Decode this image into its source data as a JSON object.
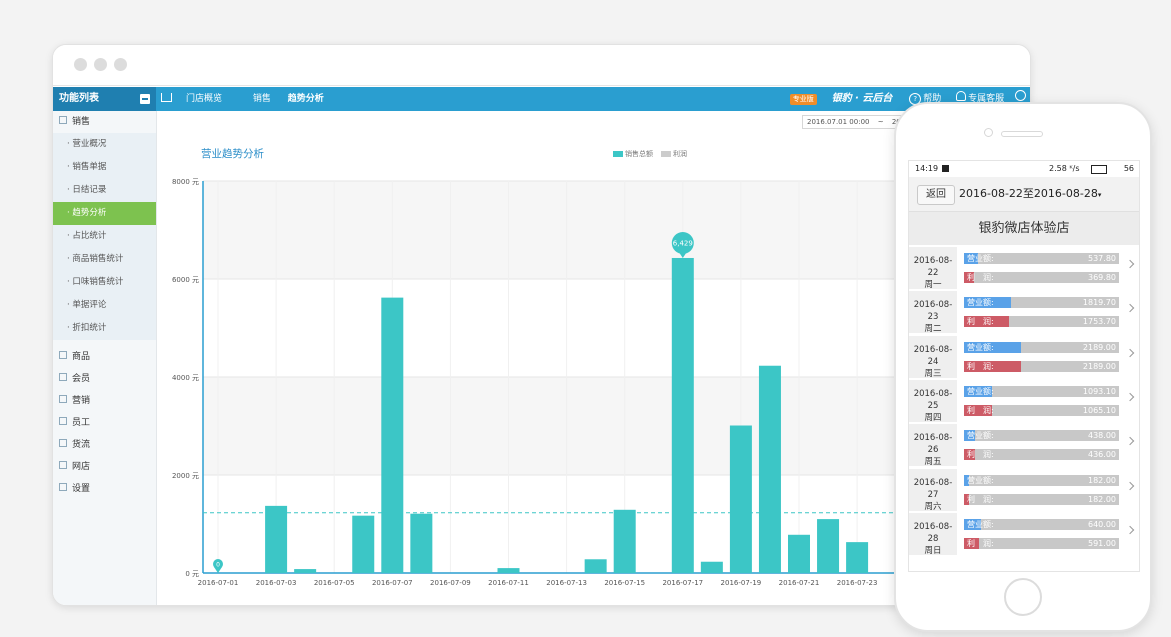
{
  "desktop": {
    "sidebar": {
      "title": "功能列表",
      "groups": [
        {
          "label": "销售",
          "expanded": true,
          "items": [
            "营业概况",
            "销售单据",
            "日结记录",
            "趋势分析",
            "占比统计",
            "商品销售统计",
            "口味销售统计",
            "单据评论",
            "折扣统计"
          ]
        },
        {
          "label": "商品"
        },
        {
          "label": "会员"
        },
        {
          "label": "营销"
        },
        {
          "label": "员工"
        },
        {
          "label": "货流"
        },
        {
          "label": "网店"
        },
        {
          "label": "设置"
        }
      ],
      "active_item": "趋势分析"
    },
    "breadcrumb": {
      "home": "门店概览",
      "section": "销售",
      "current": "趋势分析"
    },
    "header_right": {
      "edition_badge": "专业版",
      "brand": "银豹 · 云后台",
      "help": "帮助",
      "support": "专属客服"
    },
    "date_range": {
      "start": "2016.07.01 00:00",
      "separator": "~",
      "end": "2016"
    },
    "chart_title": "营业趋势分析",
    "legend": [
      {
        "label": "销售总额",
        "color": "#3cc6c6"
      },
      {
        "label": "利润",
        "color": "#cccccc"
      }
    ],
    "chart_data": {
      "type": "bar",
      "x": [
        "2016-07-01",
        "2016-07-02",
        "2016-07-03",
        "2016-07-04",
        "2016-07-05",
        "2016-07-06",
        "2016-07-07",
        "2016-07-08",
        "2016-07-09",
        "2016-07-10",
        "2016-07-11",
        "2016-07-12",
        "2016-07-13",
        "2016-07-14",
        "2016-07-15",
        "2016-07-16",
        "2016-07-17",
        "2016-07-18",
        "2016-07-19",
        "2016-07-20",
        "2016-07-21",
        "2016-07-22",
        "2016-07-23",
        "2016-07-24"
      ],
      "series": [
        {
          "name": "销售总额",
          "values": [
            0,
            0,
            1370,
            80,
            0,
            1170,
            5620,
            1210,
            0,
            0,
            100,
            0,
            0,
            280,
            1290,
            0,
            6429,
            230,
            3010,
            4230,
            780,
            1100,
            630,
            0
          ]
        }
      ],
      "xtick_labels": [
        "2016-07-01",
        "2016-07-03",
        "2016-07-05",
        "2016-07-07",
        "2016-07-09",
        "2016-07-11",
        "2016-07-13",
        "2016-07-15",
        "2016-07-17",
        "2016-07-19",
        "2016-07-21",
        "2016-07-23"
      ],
      "yticks": [
        0,
        2000,
        4000,
        6000,
        8000
      ],
      "ytick_labels": [
        "0 元",
        "2000 元",
        "4000 元",
        "6000 元",
        "8000 元"
      ],
      "ylim": [
        0,
        8000
      ],
      "average_line": 1230,
      "markers": [
        {
          "x": "2016-07-01",
          "label": "0"
        },
        {
          "x": "2016-07-17",
          "label": "6,429"
        }
      ],
      "bar_color": "#3cc6c6",
      "grid": true
    }
  },
  "mobile": {
    "status": {
      "time": "14:19",
      "battery_speed": "2.58 ᴷ/s",
      "battery": "56"
    },
    "back_label": "返回",
    "range": "2016-08-22至2016-08-28",
    "shop_name": "银豹微店体验店",
    "revenue_label": "营业额:",
    "profit_label": "利　润:",
    "revenue_color": "#5aa2e8",
    "profit_color": "#cd5b66",
    "scale_max": 6000,
    "days": [
      {
        "date": "2016-08-22",
        "weekday": "周一",
        "revenue": "537.80",
        "profit": "369.80",
        "rev_num": 537.8,
        "prof_num": 369.8
      },
      {
        "date": "2016-08-23",
        "weekday": "周二",
        "revenue": "1819.70",
        "profit": "1753.70",
        "rev_num": 1819.7,
        "prof_num": 1753.7
      },
      {
        "date": "2016-08-24",
        "weekday": "周三",
        "revenue": "2189.00",
        "profit": "2189.00",
        "rev_num": 2189.0,
        "prof_num": 2189.0
      },
      {
        "date": "2016-08-25",
        "weekday": "周四",
        "revenue": "1093.10",
        "profit": "1065.10",
        "rev_num": 1093.1,
        "prof_num": 1065.1
      },
      {
        "date": "2016-08-26",
        "weekday": "周五",
        "revenue": "438.00",
        "profit": "436.00",
        "rev_num": 438.0,
        "prof_num": 436.0
      },
      {
        "date": "2016-08-27",
        "weekday": "周六",
        "revenue": "182.00",
        "profit": "182.00",
        "rev_num": 182.0,
        "prof_num": 182.0
      },
      {
        "date": "2016-08-28",
        "weekday": "周日",
        "revenue": "640.00",
        "profit": "591.00",
        "rev_num": 640.0,
        "prof_num": 591.0
      }
    ]
  }
}
